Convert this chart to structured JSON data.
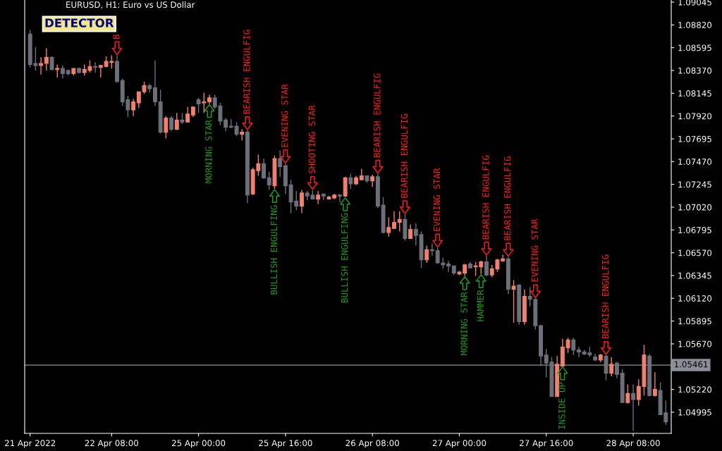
{
  "chart_data": {
    "type": "candlestick",
    "title": "EURUSD, H1: Euro vs US Dollar",
    "categories": [
      "21 Apr 2022",
      null,
      null,
      null,
      null,
      null,
      null,
      null,
      null,
      null,
      null,
      null,
      null,
      null,
      null,
      "22 Apr 08:00",
      null,
      null,
      null,
      null,
      null,
      null,
      null,
      null,
      null,
      null,
      null,
      null,
      null,
      null,
      null,
      "25 Apr 00:00",
      null,
      null,
      null,
      null,
      null,
      null,
      null,
      null,
      null,
      null,
      null,
      null,
      null,
      null,
      null,
      "25 Apr 16:00",
      null,
      null,
      null,
      null,
      null,
      null,
      null,
      null,
      null,
      null,
      null,
      null,
      null,
      null,
      null,
      "26 Apr 08:00",
      null,
      null,
      null,
      null,
      null,
      null,
      null,
      null,
      null,
      null,
      null,
      null,
      null,
      null,
      null,
      "27 Apr 00:00",
      null,
      null,
      null,
      null,
      null,
      null,
      null,
      null,
      null,
      null,
      null,
      null,
      null,
      null,
      null,
      "27 Apr 16:00",
      null,
      null,
      null,
      null,
      null,
      null,
      null,
      null,
      null,
      null,
      null,
      null,
      null,
      null,
      null,
      "28 Apr 08:00",
      null,
      null,
      null,
      null,
      null,
      null
    ],
    "series": [
      {
        "type": "scatter",
        "color": "#ff1a1a",
        "values": [
          null,
          null,
          null,
          null,
          null,
          null,
          null,
          null,
          null,
          null,
          null,
          null,
          null,
          null,
          null,
          null,
          1.0859,
          null,
          null,
          null,
          null,
          null,
          null,
          null,
          null,
          null,
          null,
          null,
          null,
          null,
          null,
          null,
          null,
          null,
          null,
          null,
          null,
          null,
          null,
          null,
          1.0785,
          null,
          null,
          null,
          null,
          null,
          null,
          1.0752,
          null,
          null,
          null,
          null,
          1.0726,
          null,
          null,
          null,
          null,
          null,
          null,
          null,
          null,
          null,
          null,
          null,
          1.0742,
          null,
          null,
          null,
          null,
          1.0702,
          null,
          null,
          null,
          null,
          null,
          1.0669,
          null,
          null,
          null,
          null,
          null,
          null,
          null,
          null,
          1.0661,
          null,
          null,
          null,
          1.066,
          null,
          null,
          null,
          null,
          1.0619,
          null,
          null,
          null,
          null,
          null,
          null,
          null,
          null,
          null,
          null,
          null,
          null,
          1.0563,
          null,
          null,
          null,
          null,
          null,
          null,
          null,
          null,
          null,
          null,
          null
        ],
        "value_labels": [
          null,
          null,
          null,
          null,
          null,
          null,
          null,
          null,
          null,
          null,
          null,
          null,
          null,
          null,
          null,
          null,
          "B",
          null,
          null,
          null,
          null,
          null,
          null,
          null,
          null,
          null,
          null,
          null,
          null,
          null,
          null,
          null,
          null,
          null,
          null,
          null,
          null,
          null,
          null,
          null,
          "BEARISH ENGULFIG",
          null,
          null,
          null,
          null,
          null,
          null,
          "EVENING STAR",
          null,
          null,
          null,
          null,
          "SHOOTING STAR",
          null,
          null,
          null,
          null,
          null,
          null,
          null,
          null,
          null,
          null,
          null,
          "BEARISH ENGULFIG",
          null,
          null,
          null,
          null,
          "BEARISH ENGULFIG",
          null,
          null,
          null,
          null,
          null,
          "EVENING STAR",
          null,
          null,
          null,
          null,
          null,
          null,
          null,
          null,
          "BEARISH ENGULFIG",
          null,
          null,
          null,
          "BEARISH ENGULFIG",
          null,
          null,
          null,
          null,
          "EVENING STAR",
          null,
          null,
          null,
          null,
          null,
          null,
          null,
          null,
          null,
          null,
          null,
          null,
          "BEARISH ENGULFIG",
          null,
          null,
          null,
          null,
          null,
          null,
          null,
          null,
          null,
          null,
          null
        ]
      },
      {
        "type": "scatter",
        "color": "#1f9a1f",
        "values": [
          null,
          null,
          null,
          null,
          null,
          null,
          null,
          null,
          null,
          null,
          null,
          null,
          null,
          null,
          null,
          null,
          null,
          null,
          null,
          null,
          null,
          null,
          null,
          null,
          null,
          null,
          null,
          null,
          null,
          null,
          null,
          null,
          null,
          1.0797,
          null,
          null,
          null,
          null,
          null,
          null,
          null,
          null,
          null,
          null,
          null,
          1.0713,
          null,
          null,
          null,
          null,
          null,
          null,
          null,
          null,
          null,
          null,
          null,
          null,
          1.0705,
          null,
          null,
          null,
          null,
          null,
          null,
          null,
          null,
          null,
          null,
          null,
          null,
          null,
          null,
          null,
          null,
          null,
          null,
          null,
          null,
          null,
          1.0627,
          null,
          null,
          1.0629,
          null,
          null,
          null,
          null,
          null,
          null,
          null,
          null,
          null,
          null,
          null,
          null,
          null,
          null,
          1.0538,
          null,
          null,
          null,
          null,
          null,
          null,
          null,
          null,
          null,
          null,
          null,
          null,
          null,
          null,
          null,
          null,
          null,
          null,
          null
        ],
        "value_labels": [
          null,
          null,
          null,
          null,
          null,
          null,
          null,
          null,
          null,
          null,
          null,
          null,
          null,
          null,
          null,
          null,
          null,
          null,
          null,
          null,
          null,
          null,
          null,
          null,
          null,
          null,
          null,
          null,
          null,
          null,
          null,
          null,
          null,
          "MORNING STAR",
          null,
          null,
          null,
          null,
          null,
          null,
          null,
          null,
          null,
          null,
          null,
          "BULLISH ENGULFING",
          null,
          null,
          null,
          null,
          null,
          null,
          null,
          null,
          null,
          null,
          null,
          null,
          "BULLISH ENGULFING",
          null,
          null,
          null,
          null,
          null,
          null,
          null,
          null,
          null,
          null,
          null,
          null,
          null,
          null,
          null,
          null,
          null,
          null,
          null,
          null,
          null,
          "MORNING STAR",
          null,
          null,
          "HAMMER",
          null,
          null,
          null,
          null,
          null,
          null,
          null,
          null,
          null,
          null,
          null,
          null,
          null,
          null,
          "INSIDE UP",
          null,
          null,
          null,
          null,
          null,
          null,
          null,
          null,
          null,
          null,
          null,
          null,
          null,
          null,
          null,
          null,
          null,
          null,
          null
        ]
      }
    ],
    "ohlc": [
      [
        1.0873,
        1.0877,
        1.084,
        1.0843
      ],
      [
        1.0844,
        1.086,
        1.0837,
        1.0842
      ],
      [
        1.0842,
        1.085,
        1.0833,
        1.0844
      ],
      [
        1.0844,
        1.0859,
        1.0837,
        1.085
      ],
      [
        1.085,
        1.0851,
        1.0837,
        1.0838
      ],
      [
        1.0838,
        1.0843,
        1.083,
        1.0839
      ],
      [
        1.0839,
        1.0842,
        1.0829,
        1.0834
      ],
      [
        1.0837,
        1.0838,
        1.0832,
        1.0834
      ],
      [
        1.0834,
        1.0839,
        1.0832,
        1.0839
      ],
      [
        1.0839,
        1.084,
        1.0834,
        1.0835
      ],
      [
        1.0835,
        1.0843,
        1.0832,
        1.0838
      ],
      [
        1.0837,
        1.0847,
        1.0835,
        1.0841
      ],
      [
        1.0841,
        1.0845,
        1.0835,
        1.084
      ],
      [
        1.084,
        1.0842,
        1.083,
        1.0842
      ],
      [
        1.0841,
        1.0851,
        1.084,
        1.0846
      ],
      [
        1.0845,
        1.0852,
        1.0839,
        1.0846
      ],
      [
        1.0846,
        1.0852,
        1.0825,
        1.0826
      ],
      [
        1.0827,
        1.0829,
        1.0802,
        1.0806
      ],
      [
        1.0808,
        1.0812,
        1.0791,
        1.0798
      ],
      [
        1.0798,
        1.0809,
        1.0792,
        1.0806
      ],
      [
        1.0805,
        1.0816,
        1.08,
        1.0816
      ],
      [
        1.0816,
        1.0826,
        1.0814,
        1.0822
      ],
      [
        1.0822,
        1.0824,
        1.0815,
        1.0819
      ],
      [
        1.082,
        1.0847,
        1.0802,
        1.0806
      ],
      [
        1.0806,
        1.0818,
        1.0775,
        1.0776
      ],
      [
        1.0776,
        1.0792,
        1.077,
        1.079
      ],
      [
        1.079,
        1.0792,
        1.0777,
        1.0779
      ],
      [
        1.0779,
        1.0795,
        1.0778,
        1.0788
      ],
      [
        1.0788,
        1.0795,
        1.0784,
        1.0786
      ],
      [
        1.0786,
        1.0801,
        1.0786,
        1.0794
      ],
      [
        1.0793,
        1.0801,
        1.0791,
        1.0801
      ],
      [
        1.0808,
        1.081,
        1.0795,
        1.0804
      ],
      [
        1.0805,
        1.0815,
        1.0795,
        1.0806
      ],
      [
        1.0806,
        1.0813,
        1.0804,
        1.081
      ],
      [
        1.081,
        1.0813,
        1.0799,
        1.0801
      ],
      [
        1.0802,
        1.0805,
        1.0783,
        1.0787
      ],
      [
        1.0788,
        1.079,
        1.0777,
        1.0781
      ],
      [
        1.0782,
        1.0789,
        1.078,
        1.0781
      ],
      [
        1.0782,
        1.0786,
        1.0772,
        1.0774
      ],
      [
        1.0774,
        1.0779,
        1.0768,
        1.0776
      ],
      [
        1.0776,
        1.0778,
        1.0706,
        1.0714
      ],
      [
        1.0715,
        1.0741,
        1.0714,
        1.0739
      ],
      [
        1.0738,
        1.0754,
        1.0733,
        1.0745
      ],
      [
        1.0745,
        1.075,
        1.073,
        1.0731
      ],
      [
        1.0731,
        1.0737,
        1.0719,
        1.0724
      ],
      [
        1.0723,
        1.0753,
        1.072,
        1.075
      ],
      [
        1.075,
        1.0758,
        1.0732,
        1.0742
      ],
      [
        1.0743,
        1.0745,
        1.0715,
        1.0723
      ],
      [
        1.0724,
        1.0729,
        1.0696,
        1.0707
      ],
      [
        1.0708,
        1.0718,
        1.0699,
        1.0703
      ],
      [
        1.0703,
        1.0719,
        1.0696,
        1.0716
      ],
      [
        1.0716,
        1.0718,
        1.0709,
        1.0713
      ],
      [
        1.0714,
        1.0719,
        1.071,
        1.071
      ],
      [
        1.071,
        1.0718,
        1.0705,
        1.0714
      ],
      [
        1.0715,
        1.0715,
        1.0709,
        1.0713
      ],
      [
        1.071,
        1.0713,
        1.071,
        1.0712
      ],
      [
        1.0711,
        1.0715,
        1.071,
        1.0714
      ],
      [
        1.0714,
        1.0715,
        1.0707,
        1.0713
      ],
      [
        1.0713,
        1.0732,
        1.0712,
        1.0731
      ],
      [
        1.0731,
        1.0735,
        1.072,
        1.0725
      ],
      [
        1.0725,
        1.0733,
        1.0724,
        1.0731
      ],
      [
        1.0729,
        1.074,
        1.0729,
        1.0733
      ],
      [
        1.0733,
        1.0733,
        1.0726,
        1.0728
      ],
      [
        1.0728,
        1.0734,
        1.0722,
        1.0732
      ],
      [
        1.0732,
        1.0735,
        1.0701,
        1.0703
      ],
      [
        1.0704,
        1.0712,
        1.0676,
        1.0677
      ],
      [
        1.0677,
        1.0692,
        1.0673,
        1.0682
      ],
      [
        1.0681,
        1.0698,
        1.0681,
        1.0687
      ],
      [
        1.0687,
        1.0698,
        1.0678,
        1.069
      ],
      [
        1.069,
        1.0695,
        1.0669,
        1.0671
      ],
      [
        1.0671,
        1.0685,
        1.0671,
        1.068
      ],
      [
        1.068,
        1.0686,
        1.0664,
        1.0674
      ],
      [
        1.0675,
        1.0678,
        1.0642,
        1.065
      ],
      [
        1.065,
        1.0664,
        1.0647,
        1.066
      ],
      [
        1.066,
        1.0666,
        1.0654,
        1.0659
      ],
      [
        1.0659,
        1.0662,
        1.0646,
        1.0647
      ],
      [
        1.0647,
        1.0652,
        1.0641,
        1.0645
      ],
      [
        1.0646,
        1.0649,
        1.0638,
        1.0644
      ],
      [
        1.0644,
        1.0644,
        1.0635,
        1.0637
      ],
      [
        1.0636,
        1.0639,
        1.0635,
        1.0638
      ],
      [
        1.0637,
        1.0646,
        1.0634,
        1.0645
      ],
      [
        1.0646,
        1.0648,
        1.0642,
        1.0642
      ],
      [
        1.0643,
        1.0648,
        1.0634,
        1.0644
      ],
      [
        1.0643,
        1.0649,
        1.0636,
        1.0648
      ],
      [
        1.0648,
        1.0654,
        1.0634,
        1.0635
      ],
      [
        1.0635,
        1.0645,
        1.0633,
        1.0641
      ],
      [
        1.0641,
        1.0651,
        1.0638,
        1.065
      ],
      [
        1.0649,
        1.0655,
        1.0648,
        1.0651
      ],
      [
        1.0651,
        1.0653,
        1.0616,
        1.0621
      ],
      [
        1.0621,
        1.063,
        1.0588,
        1.0624
      ],
      [
        1.0625,
        1.0626,
        1.0586,
        1.0589
      ],
      [
        1.0589,
        1.0621,
        1.0586,
        1.0614
      ],
      [
        1.0614,
        1.0623,
        1.0604,
        1.0611
      ],
      [
        1.0611,
        1.0612,
        1.0581,
        1.0585
      ],
      [
        1.0585,
        1.0586,
        1.0545,
        1.0555
      ],
      [
        1.0556,
        1.0562,
        1.0534,
        1.0548
      ],
      [
        1.0549,
        1.0554,
        1.0515,
        1.0515
      ],
      [
        1.0515,
        1.0555,
        1.0515,
        1.0547
      ],
      [
        1.0545,
        1.0572,
        1.0545,
        1.0564
      ],
      [
        1.0563,
        1.0573,
        1.0558,
        1.0571
      ],
      [
        1.0571,
        1.0573,
        1.0556,
        1.0561
      ],
      [
        1.0561,
        1.0564,
        1.0554,
        1.0559
      ],
      [
        1.0559,
        1.0561,
        1.0556,
        1.0557
      ],
      [
        1.0558,
        1.0564,
        1.0554,
        1.0556
      ],
      [
        1.0554,
        1.0557,
        1.055,
        1.0551
      ],
      [
        1.0551,
        1.0557,
        1.0549,
        1.0556
      ],
      [
        1.0555,
        1.0556,
        1.0531,
        1.0538
      ],
      [
        1.0538,
        1.0554,
        1.0535,
        1.0547
      ],
      [
        1.0548,
        1.0549,
        1.0533,
        1.0537
      ],
      [
        1.0538,
        1.0542,
        1.0509,
        1.0509
      ],
      [
        1.0509,
        1.0527,
        1.0508,
        1.0518
      ],
      [
        1.0518,
        1.0527,
        1.0481,
        1.0512
      ],
      [
        1.0512,
        1.0532,
        1.0506,
        1.0525
      ],
      [
        1.0525,
        1.0566,
        1.0516,
        1.0556
      ],
      [
        1.0555,
        1.0557,
        1.0515,
        1.0516
      ],
      [
        1.0516,
        1.0539,
        1.0515,
        1.0522
      ],
      [
        1.0521,
        1.0529,
        1.0497,
        1.0497
      ],
      [
        1.0499,
        1.0511,
        1.0487,
        1.049
      ]
    ],
    "colors": [
      "#6b7079",
      "#6b7079",
      "#f08070",
      "#f08070",
      "#6b7079",
      "#f08070",
      "#6b7079",
      "#6b7079",
      "#f08070",
      "#6b7079",
      "#f08070",
      "#f08070",
      "#6b7079",
      "#f08070",
      "#f08070",
      "#f08070",
      "#6b7079",
      "#6b7079",
      "#6b7079",
      "#f08070",
      "#f08070",
      "#f08070",
      "#6b7079",
      "#6b7079",
      "#6b7079",
      "#f08070",
      "#6b7079",
      "#f08070",
      "#6b7079",
      "#f08070",
      "#f08070",
      "#6b7079",
      "#f08070",
      "#f08070",
      "#6b7079",
      "#6b7079",
      "#6b7079",
      "#6b7079",
      "#6b7079",
      "#f08070",
      "#6b7079",
      "#f08070",
      "#f08070",
      "#6b7079",
      "#6b7079",
      "#f08070",
      "#6b7079",
      "#6b7079",
      "#6b7079",
      "#6b7079",
      "#f08070",
      "#6b7079",
      "#6b7079",
      "#f08070",
      "#6b7079",
      "#f08070",
      "#f08070",
      "#6b7079",
      "#f08070",
      "#6b7079",
      "#f08070",
      "#f08070",
      "#6b7079",
      "#f08070",
      "#6b7079",
      "#6b7079",
      "#f08070",
      "#f08070",
      "#f08070",
      "#6b7079",
      "#f08070",
      "#6b7079",
      "#6b7079",
      "#f08070",
      "#6b7079",
      "#6b7079",
      "#6b7079",
      "#6b7079",
      "#6b7079",
      "#f08070",
      "#f08070",
      "#6b7079",
      "#f08070",
      "#f08070",
      "#6b7079",
      "#f08070",
      "#f08070",
      "#f08070",
      "#6b7079",
      "#f08070",
      "#6b7079",
      "#f08070",
      "#6b7079",
      "#6b7079",
      "#6b7079",
      "#6b7079",
      "#6b7079",
      "#f08070",
      "#f08070",
      "#f08070",
      "#6b7079",
      "#6b7079",
      "#6b7079",
      "#6b7079",
      "#6b7079",
      "#f08070",
      "#6b7079",
      "#f08070",
      "#6b7079",
      "#6b7079",
      "#f08070",
      "#6b7079",
      "#f08070",
      "#f08070",
      "#6b7079",
      "#f08070",
      "#6b7079",
      "#6b7079"
    ],
    "ylim": [
      1.04786,
      1.09066
    ],
    "yticks": [
      {
        "value": 1.09045,
        "label": "1.09045"
      },
      {
        "value": 1.0882,
        "label": "1.08820"
      },
      {
        "value": 1.08595,
        "label": "1.08595"
      },
      {
        "value": 1.0837,
        "label": "1.08370"
      },
      {
        "value": 1.08145,
        "label": "1.08145"
      },
      {
        "value": 1.0792,
        "label": "1.07920"
      },
      {
        "value": 1.07695,
        "label": "1.07695"
      },
      {
        "value": 1.0747,
        "label": "1.07470"
      },
      {
        "value": 1.07245,
        "label": "1.07245"
      },
      {
        "value": 1.0702,
        "label": "1.07020"
      },
      {
        "value": 1.06795,
        "label": "1.06795"
      },
      {
        "value": 1.0657,
        "label": "1.06570"
      },
      {
        "value": 1.06345,
        "label": "1.06345"
      },
      {
        "value": 1.0612,
        "label": "1.06120"
      },
      {
        "value": 1.05895,
        "label": "1.05895"
      },
      {
        "value": 1.0567,
        "label": "1.05670"
      },
      {
        "value": 1.0522,
        "label": "1.05220"
      },
      {
        "value": 1.04995,
        "label": "1.04995"
      }
    ],
    "ref_lines": [
      {
        "axis": "y",
        "value": 1.05461,
        "label": "1.05461",
        "color": "#8a8f99"
      }
    ],
    "annotations": [
      "DETECTOR"
    ]
  }
}
